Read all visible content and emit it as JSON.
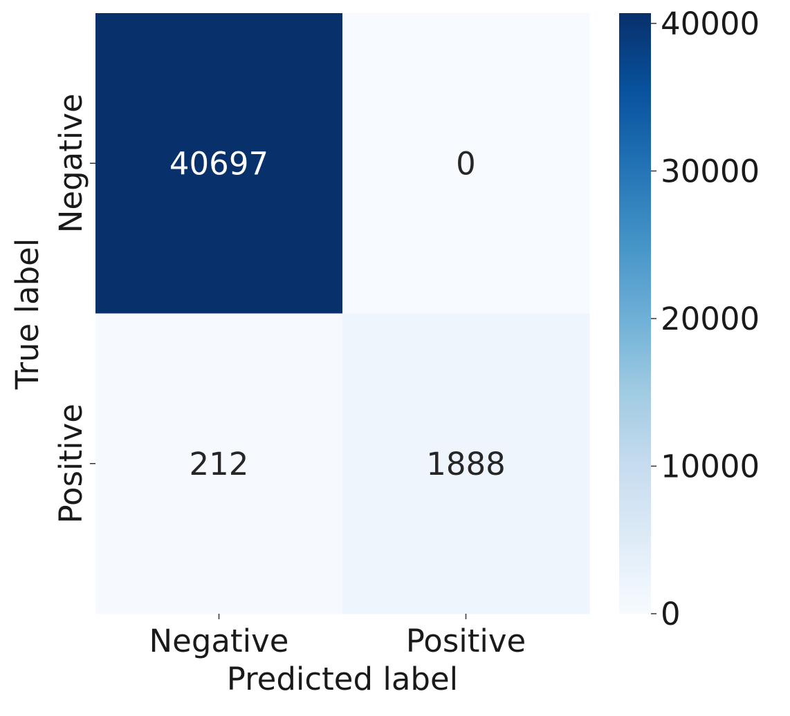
{
  "chart_data": {
    "type": "heatmap",
    "title": "",
    "xlabel": "Predicted label",
    "ylabel": "True label",
    "x_categories": [
      "Negative",
      "Positive"
    ],
    "y_categories": [
      "Negative",
      "Positive"
    ],
    "values": [
      [
        40697,
        0
      ],
      [
        212,
        1888
      ]
    ],
    "colorbar": {
      "colormap": "Blues",
      "vmin": 0,
      "vmax": 40697,
      "ticks": [
        0,
        10000,
        20000,
        30000,
        40000
      ],
      "tick_labels": [
        "0",
        "10000",
        "20000",
        "30000",
        "40000"
      ]
    },
    "grid": false,
    "legend": "colorbar-right"
  }
}
